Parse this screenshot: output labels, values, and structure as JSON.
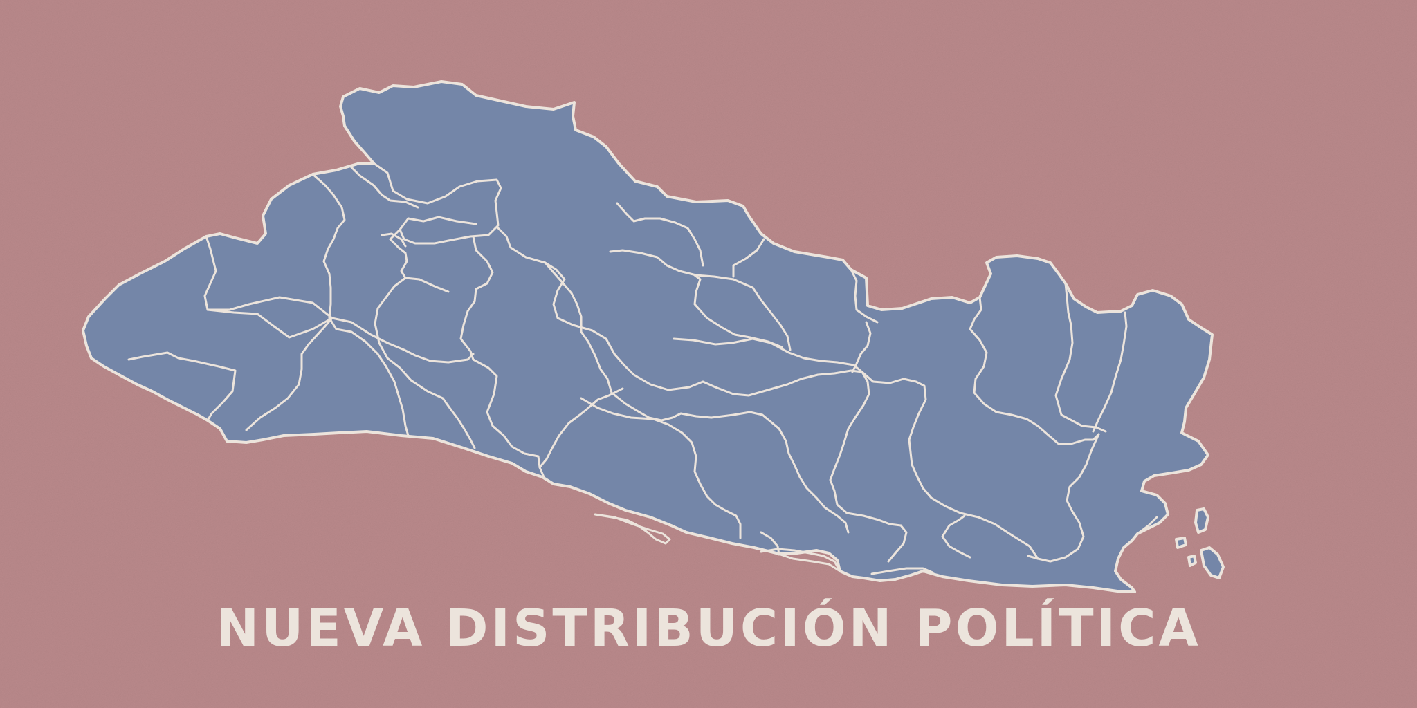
{
  "title": "NUEVA DISTRIBUCIÓN POLÍTICA",
  "colors": {
    "background": "#bb8a8c",
    "land": "#7486a8",
    "border": "#ece4dc",
    "title": "#ece4dc"
  },
  "map": {
    "country": "El Salvador",
    "region_count": 20,
    "islands": 4
  }
}
